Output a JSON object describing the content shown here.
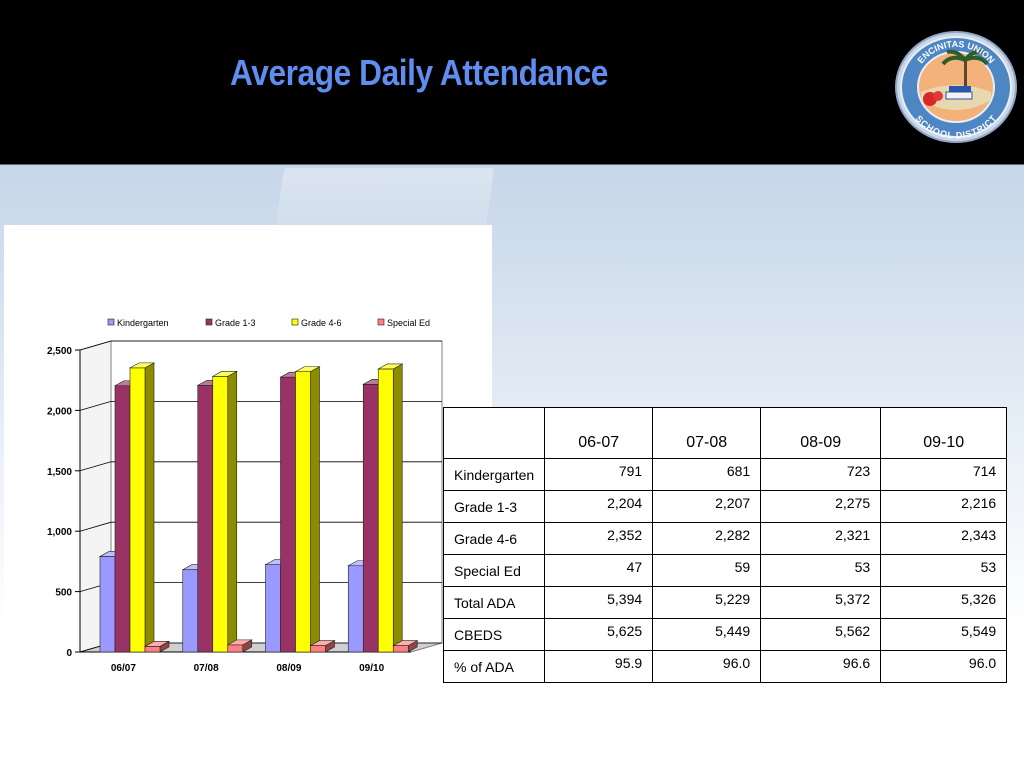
{
  "header": {
    "title": "Average Daily Attendance",
    "logo": {
      "top_text": "ENCINITAS UNION",
      "bottom_text": "SCHOOL DISTRICT",
      "icon": "district-seal-palm-books"
    }
  },
  "colors": {
    "header_bg": "#000000",
    "title": "#5f8df0",
    "kindergarten": "#9999ff",
    "grade_1_3": "#993366",
    "grade_4_6": "#ffff00",
    "special_ed": "#ff8080"
  },
  "chart_data": {
    "type": "bar",
    "style": "3d-clustered-column",
    "categories": [
      "06/07",
      "07/08",
      "08/09",
      "09/10"
    ],
    "series": [
      {
        "name": "Kindergarten",
        "values": [
          791,
          681,
          723,
          714
        ]
      },
      {
        "name": "Grade 1-3",
        "values": [
          2204,
          2207,
          2275,
          2216
        ]
      },
      {
        "name": "Grade 4-6",
        "values": [
          2352,
          2282,
          2321,
          2343
        ]
      },
      {
        "name": "Special Ed",
        "values": [
          47,
          59,
          53,
          53
        ]
      }
    ],
    "ylim": [
      0,
      2500
    ],
    "yticks": [
      0,
      500,
      1000,
      1500,
      2000,
      2500
    ],
    "ytick_labels": [
      "0",
      "500",
      "1,000",
      "1,500",
      "2,000",
      "2,500"
    ],
    "grid": true,
    "legend_position": "top"
  },
  "table": {
    "headers": [
      "",
      "06-07",
      "07-08",
      "08-09",
      "09-10"
    ],
    "rows": [
      {
        "label": "Kindergarten",
        "values": [
          "791",
          "681",
          "723",
          "714"
        ]
      },
      {
        "label": "Grade 1-3",
        "values": [
          "2,204",
          "2,207",
          "2,275",
          "2,216"
        ]
      },
      {
        "label": "Grade 4-6",
        "values": [
          "2,352",
          "2,282",
          "2,321",
          "2,343"
        ]
      },
      {
        "label": "Special Ed",
        "values": [
          "47",
          "59",
          "53",
          "53"
        ]
      },
      {
        "label": "Total ADA",
        "values": [
          "5,394",
          "5,229",
          "5,372",
          "5,326"
        ]
      },
      {
        "label": "CBEDS",
        "values": [
          "5,625",
          "5,449",
          "5,562",
          "5,549"
        ]
      },
      {
        "label": "% of ADA",
        "values": [
          "95.9",
          "96.0",
          "96.6",
          "96.0"
        ]
      }
    ]
  }
}
